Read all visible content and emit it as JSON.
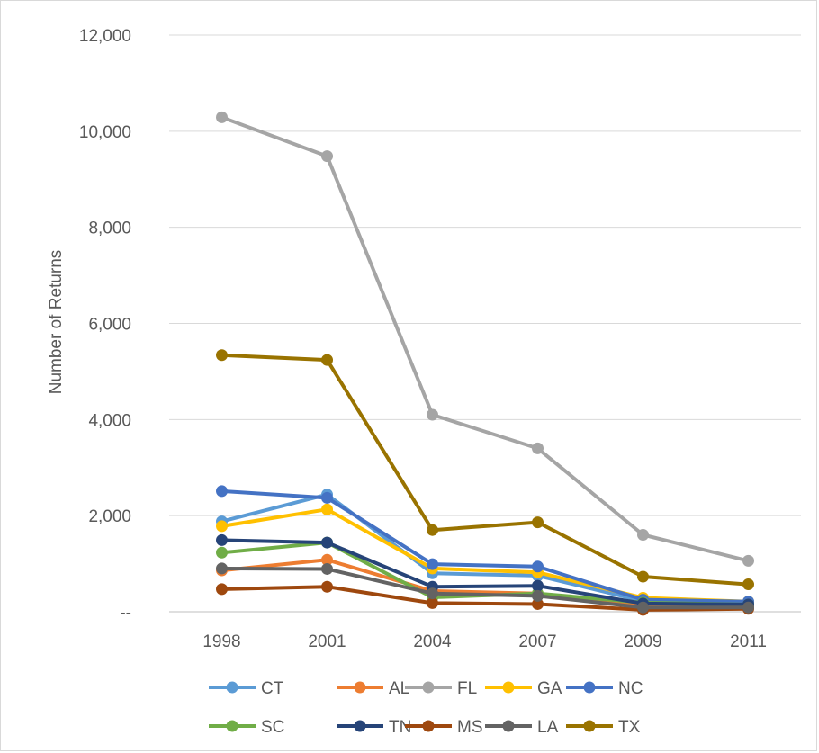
{
  "chart_data": {
    "type": "line",
    "title": "",
    "xlabel": "",
    "ylabel": "Number of Returns",
    "categories": [
      "1998",
      "2001",
      "2004",
      "2007",
      "2009",
      "2011"
    ],
    "y_tick_labels": [
      "--",
      "2,000",
      "4,000",
      "6,000",
      "8,000",
      "10,000",
      "12,000"
    ],
    "ylim": [
      0,
      12000
    ],
    "grid": true,
    "legend_position": "bottom",
    "series": [
      {
        "name": "CT",
        "color": "#5B9BD5",
        "values": [
          1880,
          2440,
          800,
          750,
          220,
          200
        ]
      },
      {
        "name": "AL",
        "color": "#ED7D31",
        "values": [
          860,
          1080,
          430,
          380,
          130,
          110
        ]
      },
      {
        "name": "FL",
        "color": "#A5A5A5",
        "values": [
          10290,
          9480,
          4100,
          3400,
          1600,
          1060
        ]
      },
      {
        "name": "GA",
        "color": "#FFC000",
        "values": [
          1780,
          2130,
          900,
          820,
          290,
          210
        ]
      },
      {
        "name": "NC",
        "color": "#4472C4",
        "values": [
          2510,
          2370,
          990,
          940,
          250,
          210
        ]
      },
      {
        "name": "SC",
        "color": "#70AD47",
        "values": [
          1230,
          1440,
          300,
          380,
          190,
          150
        ]
      },
      {
        "name": "TN",
        "color": "#264478",
        "values": [
          1490,
          1440,
          520,
          540,
          170,
          150
        ]
      },
      {
        "name": "MS",
        "color": "#9E480E",
        "values": [
          470,
          520,
          180,
          160,
          40,
          60
        ]
      },
      {
        "name": "LA",
        "color": "#636363",
        "values": [
          900,
          890,
          380,
          330,
          90,
          90
        ]
      },
      {
        "name": "TX",
        "color": "#997300",
        "values": [
          5340,
          5240,
          1700,
          1860,
          730,
          570
        ]
      }
    ]
  }
}
